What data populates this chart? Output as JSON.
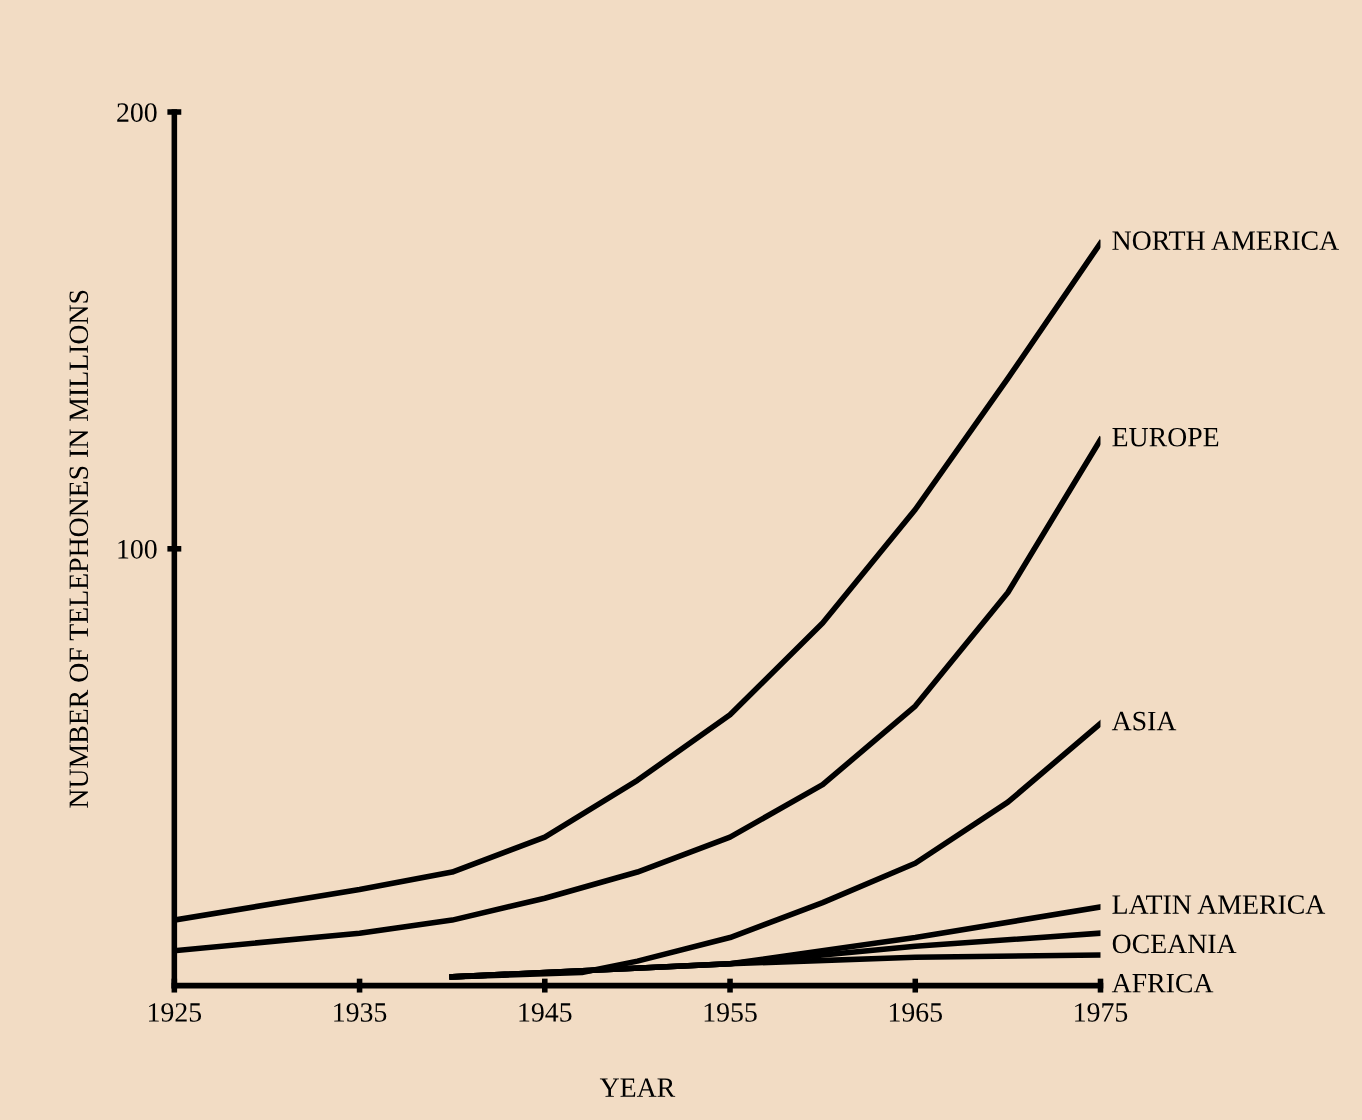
{
  "chart_data": {
    "type": "line",
    "xlabel": "YEAR",
    "ylabel": "NUMBER OF TELEPHONES IN MILLIONS",
    "xlim": [
      1925,
      1975
    ],
    "xticks": [
      1925,
      1935,
      1945,
      1955,
      1965,
      1975
    ],
    "ylim": [
      0,
      200
    ],
    "yticks": [
      100,
      200
    ],
    "grid": false,
    "legend": false,
    "marker": "none",
    "line_style": "solid",
    "series": [
      {
        "name": "NORTH AMERICA",
        "color": "#000000",
        "x": [
          1925,
          1935,
          1940,
          1945,
          1950,
          1955,
          1960,
          1965,
          1970,
          1975
        ],
        "values": [
          15,
          22,
          26,
          34,
          47,
          62,
          83,
          109,
          139,
          170
        ]
      },
      {
        "name": "EUROPE",
        "color": "#000000",
        "x": [
          1925,
          1935,
          1940,
          1945,
          1950,
          1955,
          1960,
          1965,
          1970,
          1975
        ],
        "values": [
          8,
          12,
          15,
          20,
          26,
          34,
          46,
          64,
          90,
          125
        ]
      },
      {
        "name": "ASIA",
        "color": "#000000",
        "x": [
          1940,
          1947,
          1950,
          1955,
          1960,
          1965,
          1970,
          1975
        ],
        "values": [
          2,
          3,
          5.6,
          11,
          19,
          28,
          42,
          60
        ]
      },
      {
        "name": "LATIN AMERICA",
        "color": "#000000",
        "x": [
          1940,
          1955,
          1965,
          1975
        ],
        "values": [
          2,
          5,
          11,
          18
        ]
      },
      {
        "name": "OCEANIA",
        "color": "#000000",
        "x": [
          1940,
          1955,
          1965,
          1975
        ],
        "values": [
          2,
          5,
          9,
          12
        ]
      },
      {
        "name": "AFRICA",
        "color": "#000000",
        "x": [
          1940,
          1955,
          1965,
          1975
        ],
        "values": [
          2,
          5,
          6.5,
          7
        ]
      }
    ]
  }
}
